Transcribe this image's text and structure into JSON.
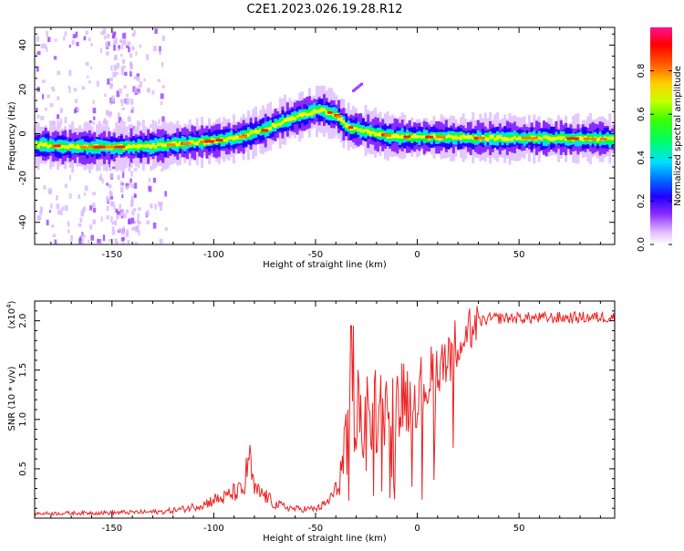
{
  "title": "C2E1.2023.026.19.28.R12",
  "chart_data": [
    {
      "type": "heatmap",
      "title": "C2E1.2023.026.19.28.R12",
      "xlabel": "Height of straight line (km)",
      "ylabel": "Frequency (Hz)",
      "xlim": [
        -188,
        97
      ],
      "ylim": [
        -50,
        48
      ],
      "xticks": [
        -150,
        -100,
        -50,
        0,
        50
      ],
      "xtick_labels": [
        "-150",
        "-100",
        "-50",
        "0",
        "50"
      ],
      "yticks": [
        -40,
        -20,
        0,
        20,
        40
      ],
      "ytick_labels": [
        "-40",
        "-20",
        "0",
        "20",
        "40"
      ],
      "ridge_x": [
        -188,
        -170,
        -150,
        -130,
        -110,
        -90,
        -75,
        -65,
        -55,
        -48,
        -40,
        -35,
        -25,
        -15,
        -5,
        0,
        10,
        30,
        60,
        97
      ],
      "ridge_y": [
        -5,
        -6,
        -6,
        -5.5,
        -4,
        -2,
        2,
        6,
        9,
        11,
        8,
        3,
        1,
        -1,
        -1.5,
        -1.5,
        -1.5,
        -2,
        -2,
        -2.5
      ],
      "colorbar": {
        "label": "Normalized spectral amplitude",
        "range": [
          0,
          1
        ],
        "ticks": [
          0.0,
          0.2,
          0.4,
          0.6,
          0.8
        ],
        "tick_labels": [
          "0.0",
          "0.2",
          "0.4",
          "0.6",
          "0.8"
        ],
        "colors": [
          "#ffffff",
          "#c07aff",
          "#2000ff",
          "#00d8ff",
          "#00ff00",
          "#ffff00",
          "#ff8000",
          "#ff0000",
          "#ff1080"
        ]
      }
    },
    {
      "type": "line",
      "xlabel": "Height of straight line (km)",
      "ylabel": "SNR (10 * v/v)",
      "scale_label": "(x10",
      "scale_exponent": "4",
      "scale_suffix": ")",
      "xlim": [
        -188,
        97
      ],
      "ylim": [
        0,
        2.2
      ],
      "xticks": [
        -150,
        -100,
        -50,
        0,
        50
      ],
      "xtick_labels": [
        "-150",
        "-100",
        "-50",
        "0",
        "50"
      ],
      "yticks": [
        0.5,
        1.0,
        1.5,
        2.0
      ],
      "ytick_labels": [
        "0.5",
        "1.0",
        "1.5",
        "2.0"
      ],
      "color": "#ee2222",
      "envelope_x": [
        -188,
        -150,
        -125,
        -115,
        -105,
        -100,
        -95,
        -90,
        -85,
        -83,
        -80,
        -75,
        -70,
        -60,
        -50,
        -45,
        -40,
        -36,
        -33,
        -30,
        -25,
        -20,
        -15,
        -10,
        -5,
        0,
        5,
        10,
        15,
        20,
        25,
        30,
        35,
        40,
        60,
        97
      ],
      "envelope_y": [
        0.05,
        0.06,
        0.07,
        0.1,
        0.15,
        0.2,
        0.22,
        0.28,
        0.3,
        0.7,
        0.3,
        0.25,
        0.15,
        0.1,
        0.1,
        0.15,
        0.3,
        0.5,
        1.0,
        1.1,
        1.15,
        1.2,
        1.25,
        1.3,
        1.3,
        1.35,
        1.45,
        1.6,
        1.75,
        1.85,
        1.95,
        2.0,
        2.03,
        2.04,
        2.04,
        2.05
      ]
    }
  ]
}
